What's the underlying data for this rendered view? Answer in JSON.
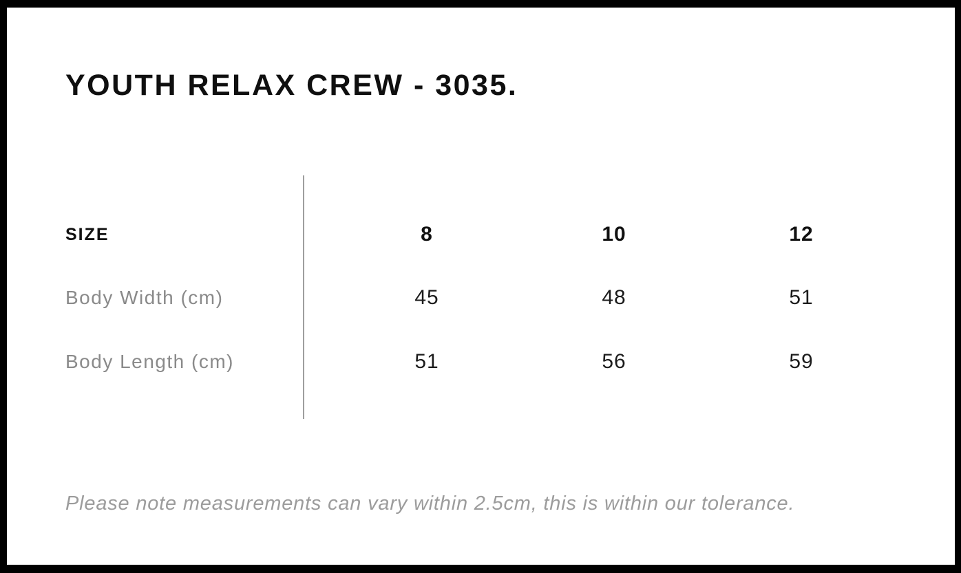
{
  "title": "YOUTH RELAX CREW - 3035.",
  "table": {
    "header_label": "SIZE",
    "columns": [
      "8",
      "10",
      "12"
    ],
    "rows": [
      {
        "label": "Body Width (cm)",
        "values": [
          "45",
          "48",
          "51"
        ]
      },
      {
        "label": "Body Length (cm)",
        "values": [
          "51",
          "56",
          "59"
        ]
      }
    ]
  },
  "note": "Please note measurements can vary within 2.5cm, this is within our tolerance.",
  "colors": {
    "frame_border": "#000000",
    "background": "#ffffff",
    "title_text": "#0f0f0f",
    "header_text": "#111111",
    "value_text": "#1c1c1c",
    "label_text": "#8a8a8a",
    "note_text": "#9c9c9c",
    "divider": "#9e9e9e"
  }
}
